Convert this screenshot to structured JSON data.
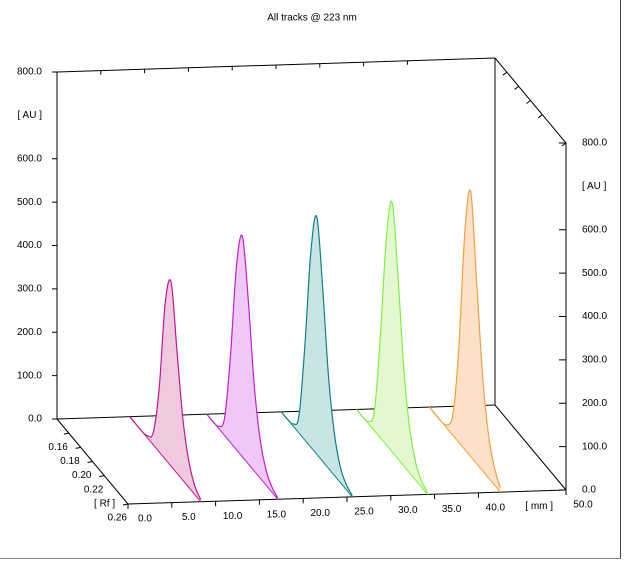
{
  "chart_data": {
    "type": "track3d",
    "title": "All tracks @ 223 nm",
    "ylabel": "[ AU ]",
    "y2label": "[ AU ]",
    "xlabel": "[ mm ]",
    "zlabel": "[ Rf ]",
    "ylim": [
      0,
      800
    ],
    "yticks": [
      {
        "value": 0,
        "label": "0.0"
      },
      {
        "value": 100,
        "label": "100.0"
      },
      {
        "value": 200,
        "label": "200.0"
      },
      {
        "value": 300,
        "label": "300.0"
      },
      {
        "value": 400,
        "label": "400.0"
      },
      {
        "value": 500,
        "label": "500.0"
      },
      {
        "value": 600,
        "label": "600.0"
      },
      {
        "value": 800,
        "label": "800.0"
      }
    ],
    "y2lim": [
      0,
      800
    ],
    "y2ticks": [
      {
        "value": 0,
        "label": "0.0"
      },
      {
        "value": 100,
        "label": "100.0"
      },
      {
        "value": 200,
        "label": "200.0"
      },
      {
        "value": 300,
        "label": "300.0"
      },
      {
        "value": 400,
        "label": "400.0"
      },
      {
        "value": 500,
        "label": "500.0"
      },
      {
        "value": 600,
        "label": "600.0"
      },
      {
        "value": 800,
        "label": "800.0"
      }
    ],
    "xlim": [
      0,
      50
    ],
    "xticks": [
      {
        "value": 0,
        "label": "0.0"
      },
      {
        "value": 5,
        "label": "5.0"
      },
      {
        "value": 10,
        "label": "10.0"
      },
      {
        "value": 15,
        "label": "15.0"
      },
      {
        "value": 20,
        "label": "20.0"
      },
      {
        "value": 25,
        "label": "25.0"
      },
      {
        "value": 30,
        "label": "30.0"
      },
      {
        "value": 35,
        "label": "35.0"
      },
      {
        "value": 40,
        "label": "40.0"
      },
      {
        "value": 50,
        "label": "50.0"
      }
    ],
    "zlim": [
      0.14,
      0.26
    ],
    "zticks": [
      0.16,
      0.18,
      {
        "value": 0.2,
        "label": "0.20"
      },
      0.22,
      0.26
    ],
    "rf": [
      0.14,
      0.15,
      0.16,
      0.17,
      0.18,
      0.19,
      0.2,
      0.21,
      0.22,
      0.23,
      0.24,
      0.25,
      0.26
    ],
    "series": [
      {
        "mm": 8.3,
        "color": "#c0188c",
        "fill": "#f0c8e0",
        "values": [
          0,
          0,
          0,
          5,
          30,
          150,
          360,
          424,
          280,
          140,
          60,
          20,
          5
        ]
      },
      {
        "mm": 17.1,
        "color": "#c020d0",
        "fill": "#f0c8f8",
        "values": [
          0,
          0,
          5,
          40,
          200,
          420,
          509,
          380,
          200,
          90,
          35,
          12,
          3
        ]
      },
      {
        "mm": 25.6,
        "color": "#108080",
        "fill": "#c8e4e4",
        "values": [
          0,
          0,
          5,
          40,
          220,
          450,
          548,
          400,
          210,
          95,
          35,
          12,
          3
        ]
      },
      {
        "mm": 34.2,
        "color": "#80f040",
        "fill": "#e4f8d0",
        "values": [
          0,
          0,
          5,
          45,
          230,
          470,
          576,
          420,
          220,
          100,
          40,
          14,
          4
        ]
      },
      {
        "mm": 42.5,
        "color": "#f0a040",
        "fill": "#fce0c8",
        "values": [
          0,
          0,
          0,
          8,
          50,
          220,
          500,
          611,
          420,
          220,
          100,
          40,
          10
        ]
      }
    ]
  }
}
